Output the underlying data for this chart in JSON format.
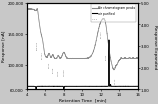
{
  "title": "",
  "xlabel": "Retention Time  [min]",
  "ylabel_left": "Response [nA]",
  "ylabel_right": "Response Expanded",
  "xlim": [
    4,
    16
  ],
  "ylim_left": [
    60000,
    200000
  ],
  "ylim_right": [
    1.0,
    5.0
  ],
  "xticks": [
    4,
    6,
    8,
    10,
    12,
    14,
    16
  ],
  "yticks_left": [
    60000,
    100000,
    150000,
    200000
  ],
  "yticks_right": [
    1.0,
    2.0,
    3.0,
    4.0,
    5.0
  ],
  "ytick_labels_left": [
    "60,000",
    "100,000",
    "150,000",
    "200,000"
  ],
  "ytick_labels_right": [
    "1.00",
    "2.00",
    "3.00",
    "4.00",
    "5.00"
  ],
  "legend_labels": [
    "Air chromatogram peaks",
    "air purified",
    ""
  ],
  "bg_color": "#c8c8c8",
  "plot_bg": "#ffffff",
  "line_color_gray": "#888888",
  "line_color_black": "#000000"
}
